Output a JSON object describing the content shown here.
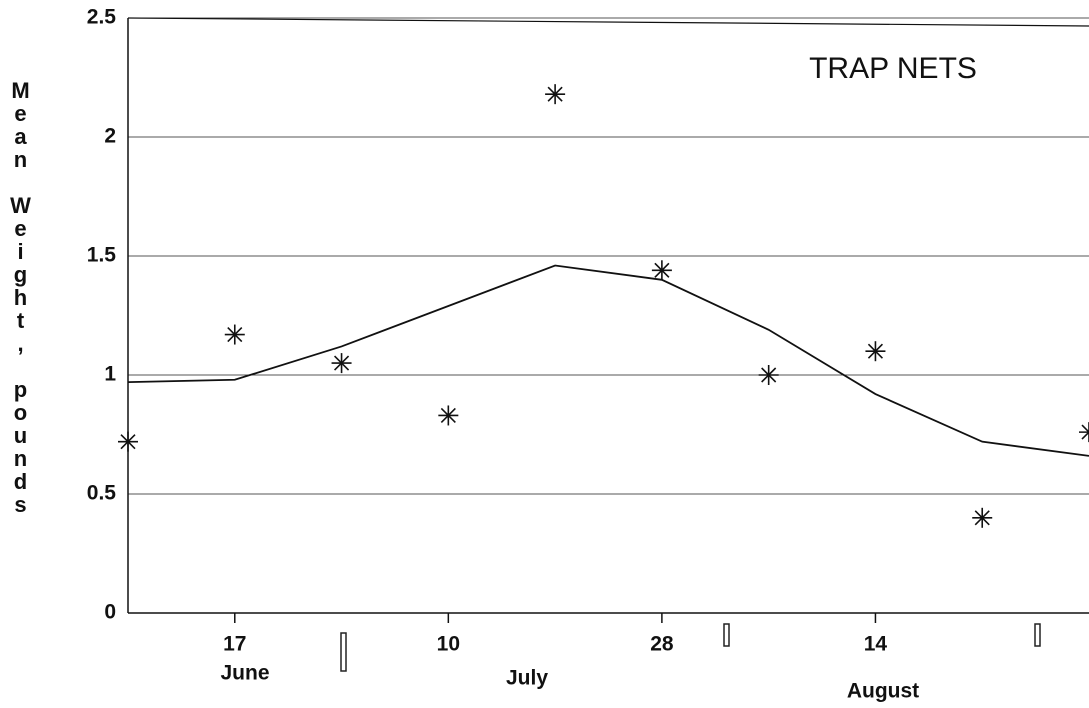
{
  "chart_data": {
    "type": "scatter",
    "title": "TRAP NETS",
    "y_label": "Mean Weight, pounds",
    "categories": [
      null,
      "17",
      null,
      "10",
      null,
      "28",
      null,
      "14",
      null,
      null
    ],
    "months": [
      "June",
      "July",
      "August"
    ],
    "series": [
      {
        "type": "scatter",
        "color": "#111111",
        "values": [
          0.72,
          1.17,
          1.05,
          0.83,
          2.18,
          1.44,
          1.0,
          1.1,
          0.4,
          0.76
        ]
      },
      {
        "type": "line",
        "color": "#111111",
        "values": [
          0.97,
          0.98,
          1.12,
          1.29,
          1.46,
          1.4,
          1.19,
          0.92,
          0.72,
          0.66
        ]
      }
    ],
    "ylim": [
      0,
      2.5
    ],
    "yticks": [
      0,
      0.5,
      1,
      1.5,
      2,
      2.5
    ],
    "grid": true
  }
}
